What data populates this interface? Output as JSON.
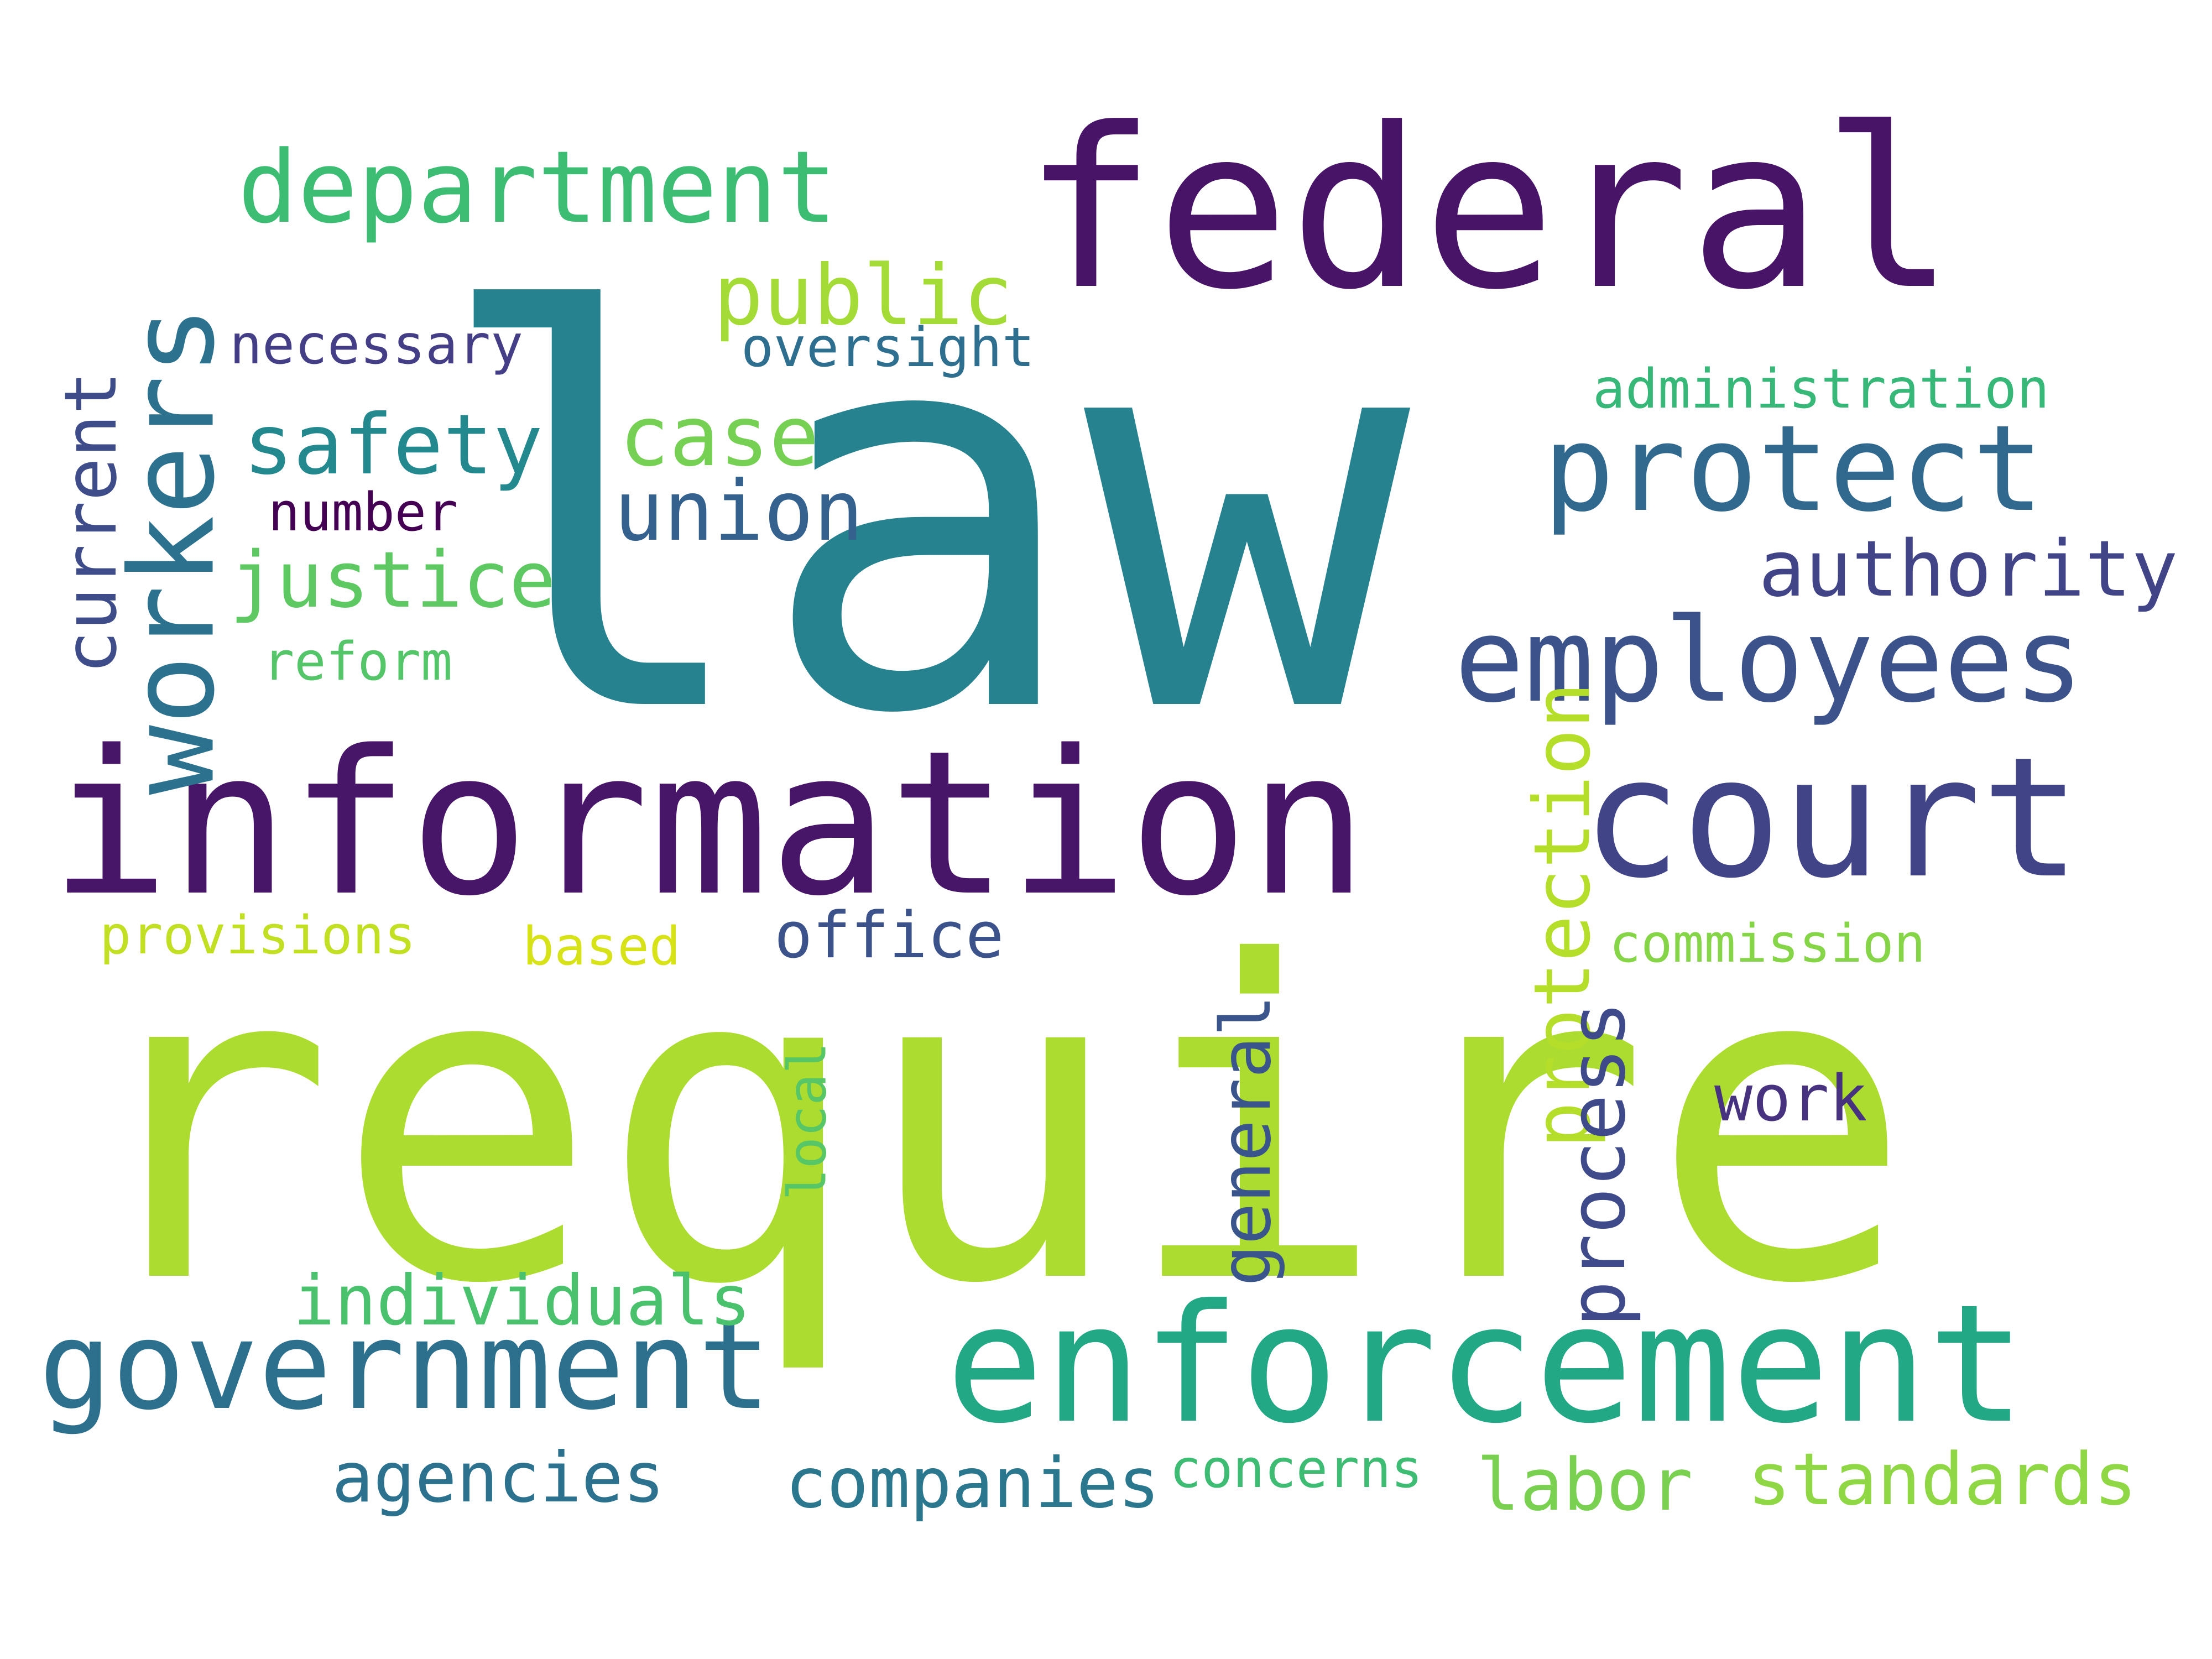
{
  "words": [
    {
      "text": "law",
      "color": "#26828e",
      "weight": 100
    },
    {
      "text": "require",
      "color": "#addc30",
      "weight": 95
    },
    {
      "text": "information",
      "color": "#481668",
      "weight": 60
    },
    {
      "text": "federal",
      "color": "#481467",
      "weight": 58
    },
    {
      "text": "enforcement",
      "color": "#22a884",
      "weight": 50
    },
    {
      "text": "court",
      "color": "#414487",
      "weight": 45
    },
    {
      "text": "government",
      "color": "#2d708e",
      "weight": 38
    },
    {
      "text": "employees",
      "color": "#3b528b",
      "weight": 34
    },
    {
      "text": "workers",
      "color": "#2c728e",
      "weight": 34
    },
    {
      "text": "protect",
      "color": "#31688e",
      "weight": 34
    },
    {
      "text": "department",
      "color": "#3dbc74",
      "weight": 30
    },
    {
      "text": "safety",
      "color": "#23898e",
      "weight": 22
    },
    {
      "text": "public",
      "color": "#a5db36",
      "weight": 22
    },
    {
      "text": "case",
      "color": "#75d054",
      "weight": 22
    },
    {
      "text": "union",
      "color": "#34618d",
      "weight": 22
    },
    {
      "text": "justice",
      "color": "#5ec962",
      "weight": 22
    },
    {
      "text": "authority",
      "color": "#414487",
      "weight": 22
    },
    {
      "text": "protection",
      "color": "#b5de2b",
      "weight": 22
    },
    {
      "text": "process",
      "color": "#3e4a89",
      "weight": 22
    },
    {
      "text": "current",
      "color": "#3e4c8a",
      "weight": 20
    },
    {
      "text": "general",
      "color": "#3a548c",
      "weight": 20
    },
    {
      "text": "labor",
      "color": "#7ad151",
      "weight": 20
    },
    {
      "text": "standards",
      "color": "#8fd744",
      "weight": 20
    },
    {
      "text": "agencies",
      "color": "#2c728e",
      "weight": 20
    },
    {
      "text": "companies",
      "color": "#2a778e",
      "weight": 20
    },
    {
      "text": "individuals",
      "color": "#4ac16d",
      "weight": 20
    },
    {
      "text": "office",
      "color": "#3b528b",
      "weight": 18
    },
    {
      "text": "work",
      "color": "#46327e",
      "weight": 18
    },
    {
      "text": "necessary",
      "color": "#433e85",
      "weight": 16
    },
    {
      "text": "oversight",
      "color": "#2e6e8e",
      "weight": 16
    },
    {
      "text": "administration",
      "color": "#37b878",
      "weight": 16
    },
    {
      "text": "number",
      "color": "#440154",
      "weight": 15
    },
    {
      "text": "reform",
      "color": "#54c568",
      "weight": 15
    },
    {
      "text": "provisions",
      "color": "#c2df23",
      "weight": 15
    },
    {
      "text": "based",
      "color": "#d8e219",
      "weight": 15
    },
    {
      "text": "commission",
      "color": "#86d549",
      "weight": 15
    },
    {
      "text": "local",
      "color": "#56c667",
      "weight": 15
    },
    {
      "text": "concerns",
      "color": "#3fbc73",
      "weight": 15
    }
  ]
}
